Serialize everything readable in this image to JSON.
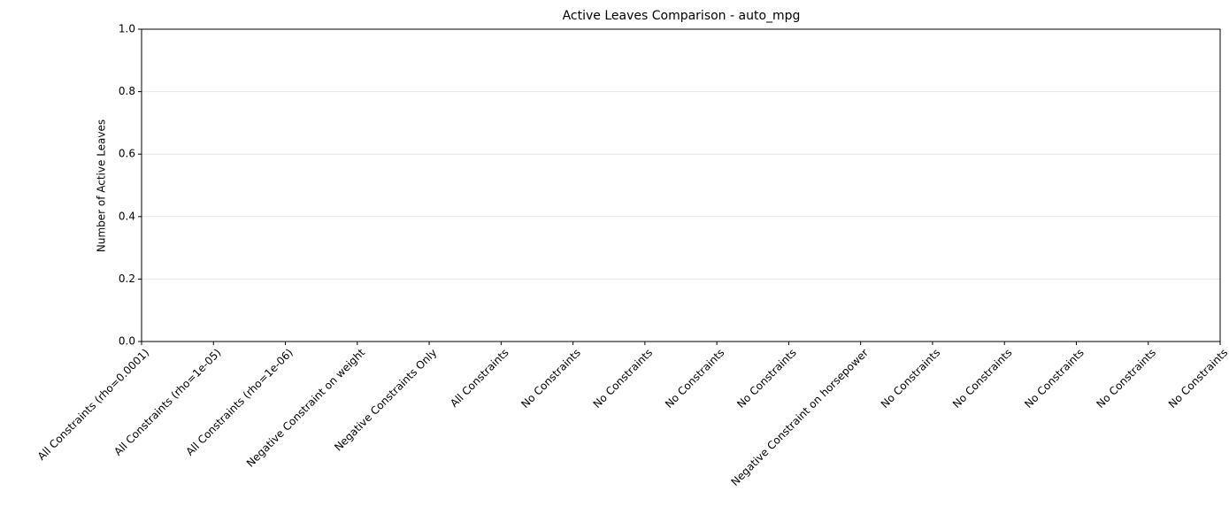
{
  "chart_data": {
    "type": "bar",
    "title": "Active Leaves Comparison - auto_mpg",
    "ylabel": "Number of Active Leaves",
    "categories": [
      "All Constraints (rho=0.0001)",
      "All Constraints (rho=1e-05)",
      "All Constraints (rho=1e-06)",
      "Negative Constraint on weight",
      "Negative Constraints Only",
      "All Constraints",
      "No Constraints",
      "No Constraints",
      "No Constraints",
      "No Constraints",
      "Negative Constraint on horsepower",
      "No Constraints",
      "No Constraints",
      "No Constraints",
      "No Constraints",
      "No Constraints"
    ],
    "values": [
      0,
      0,
      0,
      0,
      0,
      0,
      0,
      0,
      0,
      0,
      0,
      0,
      0,
      0,
      0,
      0
    ],
    "ylim": [
      0,
      1
    ],
    "yticks": [
      {
        "value": 0,
        "label": "0.0"
      },
      {
        "value": 0.2,
        "label": "0.2"
      },
      {
        "value": 0.4,
        "label": "0.4"
      },
      {
        "value": 0.6,
        "label": "0.6"
      },
      {
        "value": 0.8,
        "label": "0.8"
      },
      {
        "value": 1,
        "label": "1.0"
      }
    ],
    "grid": true
  }
}
